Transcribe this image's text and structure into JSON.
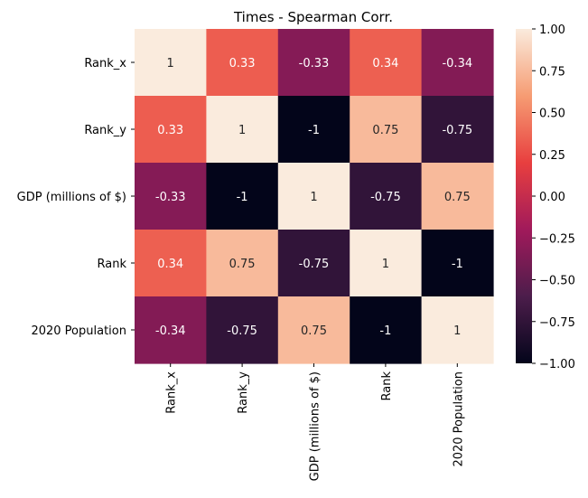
{
  "chart_data": {
    "type": "heatmap",
    "title": "Times - Spearman Corr.",
    "rows": [
      "Rank_x",
      "Rank_y",
      "GDP (millions of $)",
      "Rank",
      "2020 Population"
    ],
    "columns": [
      "Rank_x",
      "Rank_y",
      "GDP (millions of $)",
      "Rank",
      "2020 Population"
    ],
    "values": [
      [
        1,
        0.33,
        -0.33,
        0.34,
        -0.34
      ],
      [
        0.33,
        1,
        -1,
        0.75,
        -0.75
      ],
      [
        -0.33,
        -1,
        1,
        -0.75,
        0.75
      ],
      [
        0.34,
        0.75,
        -0.75,
        1,
        -1
      ],
      [
        -0.34,
        -0.75,
        0.75,
        -1,
        1
      ]
    ],
    "cell_labels": [
      [
        "1",
        "0.33",
        "-0.33",
        "0.34",
        "-0.34"
      ],
      [
        "0.33",
        "1",
        "-1",
        "0.75",
        "-0.75"
      ],
      [
        "-0.33",
        "-1",
        "1",
        "-0.75",
        "0.75"
      ],
      [
        "0.34",
        "0.75",
        "-0.75",
        "1",
        "-1"
      ],
      [
        "-0.34",
        "-0.75",
        "0.75",
        "-1",
        "1"
      ]
    ],
    "colorbar": {
      "range": [
        -1.0,
        1.0
      ],
      "ticks": [
        1.0,
        0.75,
        0.5,
        0.25,
        0.0,
        -0.25,
        -0.5,
        -0.75,
        -1.0
      ],
      "tick_labels": [
        "1.00",
        "0.75",
        "0.50",
        "0.25",
        "0.00",
        "−0.25",
        "−0.50",
        "−0.75",
        "−1.00"
      ],
      "colormap": "rocket",
      "stops": [
        "#03051a",
        "#4c1d4b",
        "#a11a5b",
        "#e83f3f",
        "#f69c73",
        "#faebdd"
      ]
    }
  }
}
